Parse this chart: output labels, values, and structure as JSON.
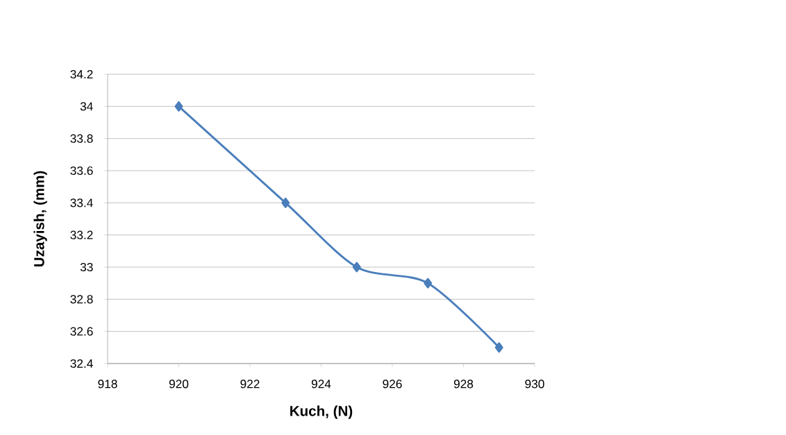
{
  "chart_data": {
    "type": "line",
    "xlabel": "Kuch, (N)",
    "ylabel": "Uzayish, (mm)",
    "x": [
      920,
      923,
      925,
      927,
      929
    ],
    "series": [
      {
        "color": "#4a7ebb",
        "values": [
          34,
          33.4,
          33,
          32.9,
          32.5
        ]
      }
    ],
    "xlim": [
      918,
      930
    ],
    "xticks": [
      918,
      920,
      922,
      924,
      926,
      928,
      930
    ],
    "ylim": [
      32.4,
      34.2
    ],
    "yticks": [
      32.4,
      32.6,
      32.8,
      33,
      33.2,
      33.4,
      33.6,
      33.8,
      34,
      34.2
    ],
    "grid": "y",
    "marker": "diamond",
    "line_style": "solid"
  }
}
